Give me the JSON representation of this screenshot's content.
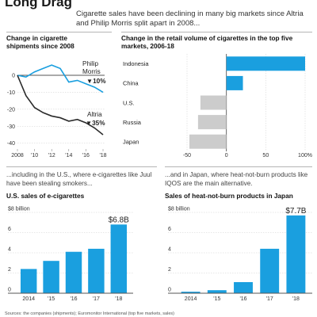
{
  "header": {
    "title": "Long Drag",
    "subtitle": "Cigarette sales have been declining in many big markets since Altria and Philip Morris split apart in 2008..."
  },
  "captions": {
    "ecig": "...including in the U.S., where e-cigarettes like Juul have been stealing smokers...",
    "htp": "...and in Japan, where heat-not-burn products like IQOS are the main alternative."
  },
  "source": "Sources: the companies (shipments); Euromonitor International (top five markets, sales)",
  "colors": {
    "blue": "#1a9fdf",
    "dark": "#2b2b2b",
    "gray": "#cccccc",
    "grid": "#cfcfcf",
    "zero": "#555555"
  },
  "chart_data": [
    {
      "type": "line",
      "title": "Change in cigarette shipments since 2008",
      "x": [
        2008,
        2009,
        2010,
        2011,
        2012,
        2013,
        2014,
        2015,
        2016,
        2017,
        2018
      ],
      "x_tick_labels": [
        "2008",
        "'10",
        "'12",
        "'14",
        "'16",
        "'18"
      ],
      "y_ticks": [
        0,
        -10,
        -20,
        -30,
        -40
      ],
      "ylim": [
        -42,
        7
      ],
      "grid": true,
      "series": [
        {
          "name": "Philip Morris",
          "change": "▼10%",
          "color": "#1a9fdf",
          "values": [
            0,
            -1,
            2,
            4,
            6,
            4,
            -4,
            -3,
            -5,
            -7,
            -10
          ]
        },
        {
          "name": "Altria",
          "change": "▼35%",
          "color": "#2b2b2b",
          "values": [
            0,
            -12,
            -19,
            -22,
            -24,
            -25,
            -27,
            -26,
            -28,
            -31,
            -35
          ]
        }
      ]
    },
    {
      "type": "bar",
      "orientation": "horizontal",
      "title": "Change in the retail volume of cigarettes in the top five markets, 2006-18",
      "categories": [
        "Indonesia",
        "China",
        "U.S.",
        "Russia",
        "Japan"
      ],
      "values": [
        100,
        21,
        -33,
        -36,
        -47
      ],
      "x_ticks": [
        -50,
        0,
        50,
        100
      ],
      "x_tick_labels": [
        "-50",
        "0",
        "50",
        "100%"
      ],
      "xlim": [
        -50,
        100
      ],
      "grid": true
    },
    {
      "type": "bar",
      "title": "U.S. sales of e-cigarettes",
      "categories": [
        "2014",
        "'15",
        "'16",
        "'17",
        "'18"
      ],
      "values": [
        2.4,
        3.2,
        4.1,
        4.4,
        6.8
      ],
      "last_label": "$6.8B",
      "y_ticks": [
        0,
        2,
        4,
        6,
        8
      ],
      "y_tick_labels": [
        "0",
        "2",
        "4",
        "6",
        "$8 billion"
      ],
      "ylim": [
        0,
        8
      ],
      "grid": true
    },
    {
      "type": "bar",
      "title": "Sales of heat-not-burn products in Japan",
      "categories": [
        "2014",
        "'15",
        "'16",
        "'17",
        "'18"
      ],
      "values": [
        0.15,
        0.3,
        1.1,
        4.4,
        7.7
      ],
      "last_label": "$7.7B",
      "y_ticks": [
        0,
        2,
        4,
        6,
        8
      ],
      "y_tick_labels": [
        "0",
        "2",
        "4",
        "6",
        "$8 billion"
      ],
      "ylim": [
        0,
        8
      ],
      "grid": true
    }
  ]
}
